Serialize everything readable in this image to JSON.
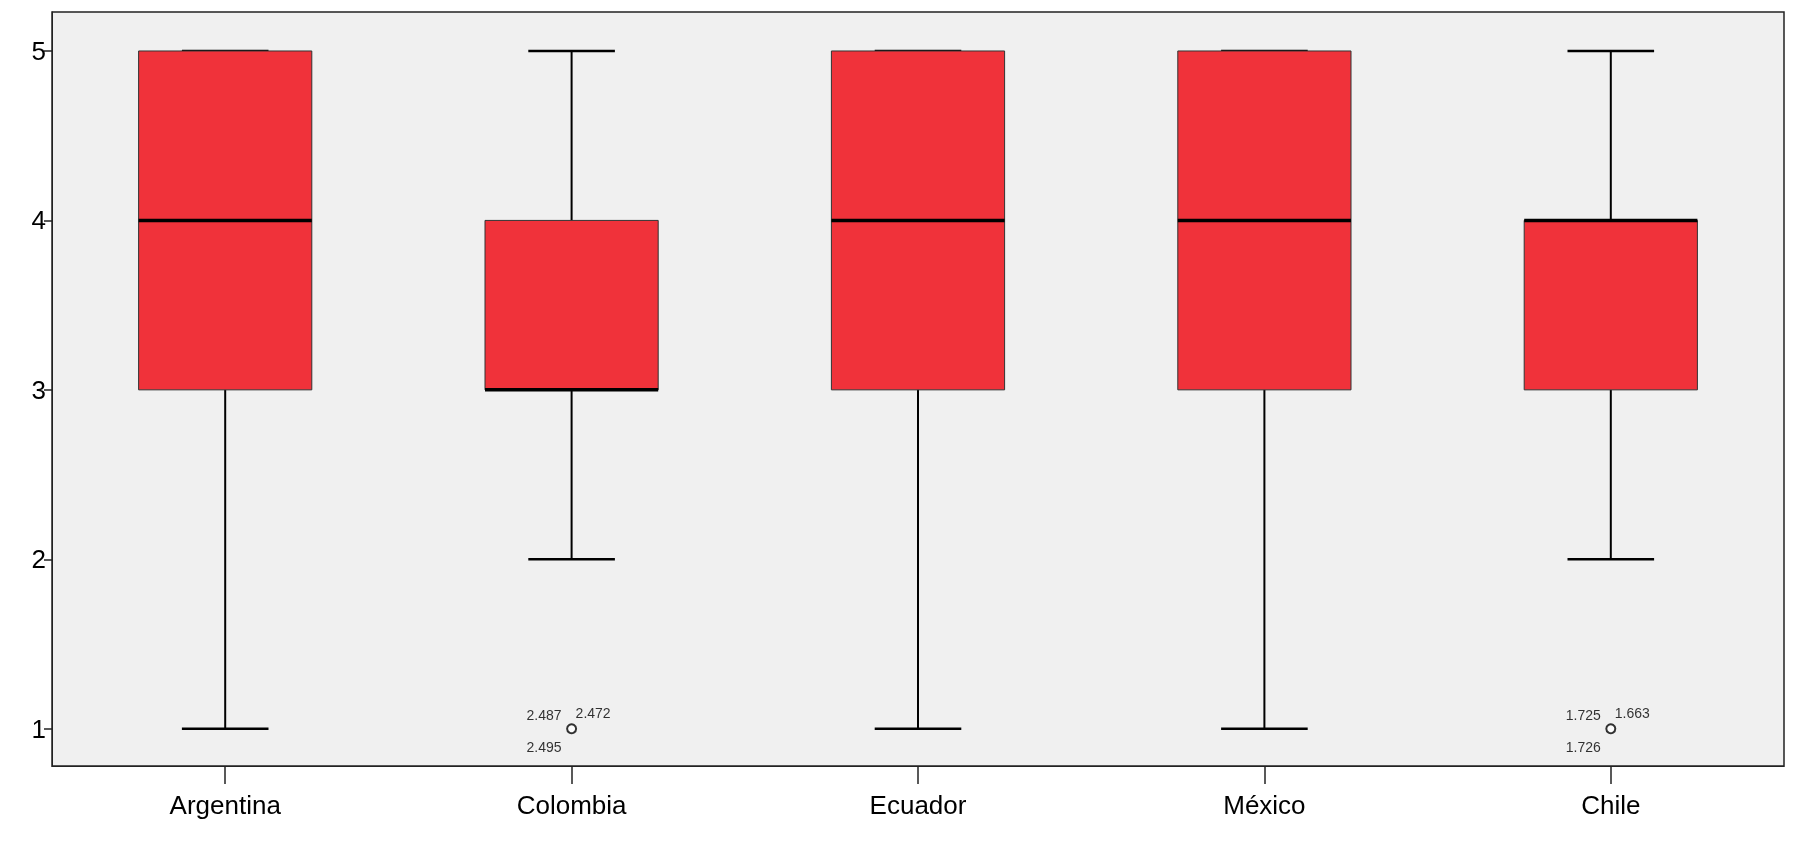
{
  "chart_data": {
    "type": "box",
    "categories": [
      "Argentina",
      "Colombia",
      "Ecuador",
      "México",
      "Chile"
    ],
    "color": "#f0323a",
    "boxes": [
      {
        "low": 1,
        "q1": 3,
        "median": 4,
        "q3": 5,
        "high": 5
      },
      {
        "low": 2,
        "q1": 3,
        "median": 3,
        "q3": 4,
        "high": 5,
        "outliers": [
          1
        ]
      },
      {
        "low": 1,
        "q1": 3,
        "median": 4,
        "q3": 5,
        "high": 5
      },
      {
        "low": 1,
        "q1": 3,
        "median": 4,
        "q3": 5,
        "high": 5
      },
      {
        "low": 2,
        "q1": 3,
        "median": 4,
        "q3": 4,
        "high": 5,
        "outliers": [
          1
        ]
      }
    ],
    "ylim": [
      0.78,
      5.23
    ],
    "yticks": [
      1,
      2,
      3,
      4,
      5
    ],
    "grid": false,
    "annotations": [
      "2.487",
      "2.472",
      "2.495",
      "1.725",
      "1.663",
      "1.726"
    ]
  }
}
